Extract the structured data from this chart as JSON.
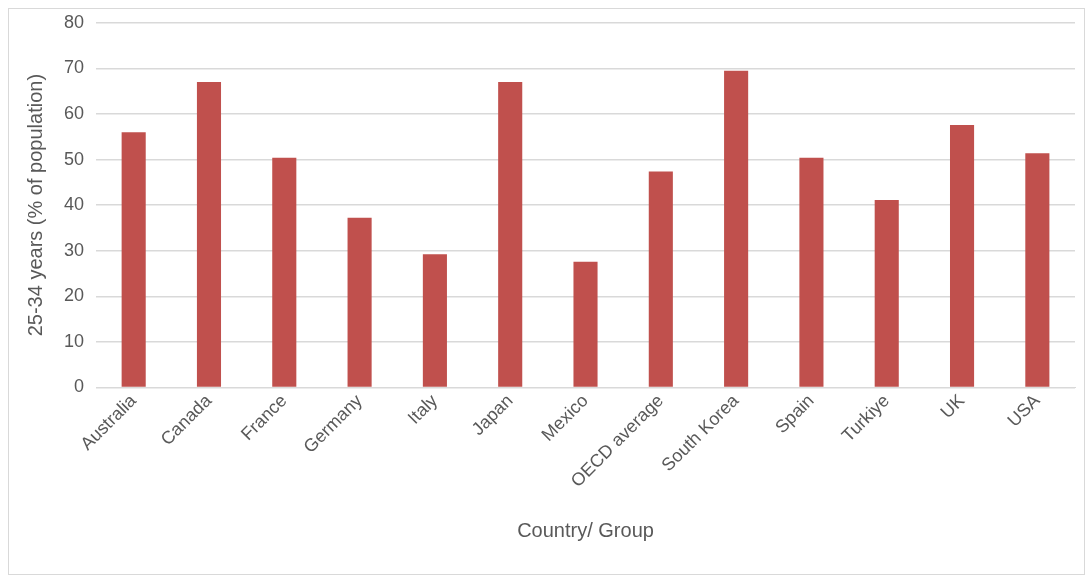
{
  "chart_data": {
    "type": "bar",
    "xlabel": "Country/ Group",
    "ylabel": "25-34 years (% of population)",
    "categories": [
      "Australia",
      "Canada",
      "France",
      "Germany",
      "Italy",
      "Japan",
      "Mexico",
      "OECD average",
      "South Korea",
      "Spain",
      "Turkiye",
      "UK",
      "USA"
    ],
    "values": [
      56.0,
      67.0,
      50.4,
      37.2,
      29.2,
      67.0,
      27.6,
      47.4,
      69.5,
      50.4,
      41.1,
      57.6,
      51.4
    ],
    "color": "#c0504d",
    "ylim": [
      0,
      80
    ],
    "yticks": [
      0,
      10,
      20,
      30,
      40,
      50,
      60,
      70,
      80
    ],
    "grid": "y",
    "legend": false
  }
}
